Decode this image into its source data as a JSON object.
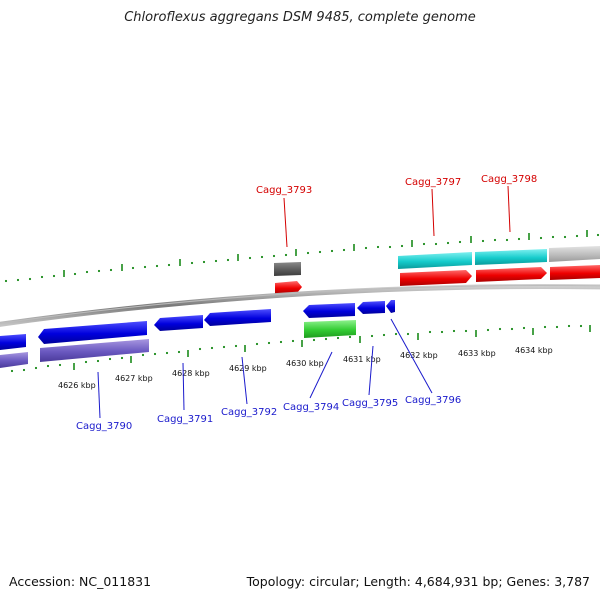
{
  "title": "Chloroflexus aggregans DSM 9485, complete genome",
  "footer": {
    "accession": "Accession: NC_011831",
    "summary": "Topology: circular; Length: 4,684,931 bp; Genes: 3,787"
  },
  "colors": {
    "backbone": "#8c8c8c",
    "tick": "#1a8a1a",
    "label_reverse": "#d40000",
    "label_forward": "#1a1acc"
  },
  "scale_labels": [
    "4626 kbp",
    "4627 kbp",
    "4628 kbp",
    "4629 kbp",
    "4630 kbp",
    "4631 kbp",
    "4632 kbp",
    "4633 kbp",
    "4634 kbp"
  ],
  "gene_labels": [
    {
      "text": "Cagg_3793",
      "strand": "reverse"
    },
    {
      "text": "Cagg_3797",
      "strand": "reverse"
    },
    {
      "text": "Cagg_3798",
      "strand": "reverse"
    },
    {
      "text": "Cagg_3790",
      "strand": "forward"
    },
    {
      "text": "Cagg_3791",
      "strand": "forward"
    },
    {
      "text": "Cagg_3792",
      "strand": "forward"
    },
    {
      "text": "Cagg_3794",
      "strand": "forward"
    },
    {
      "text": "Cagg_3795",
      "strand": "forward"
    },
    {
      "text": "Cagg_3796",
      "strand": "forward"
    }
  ]
}
